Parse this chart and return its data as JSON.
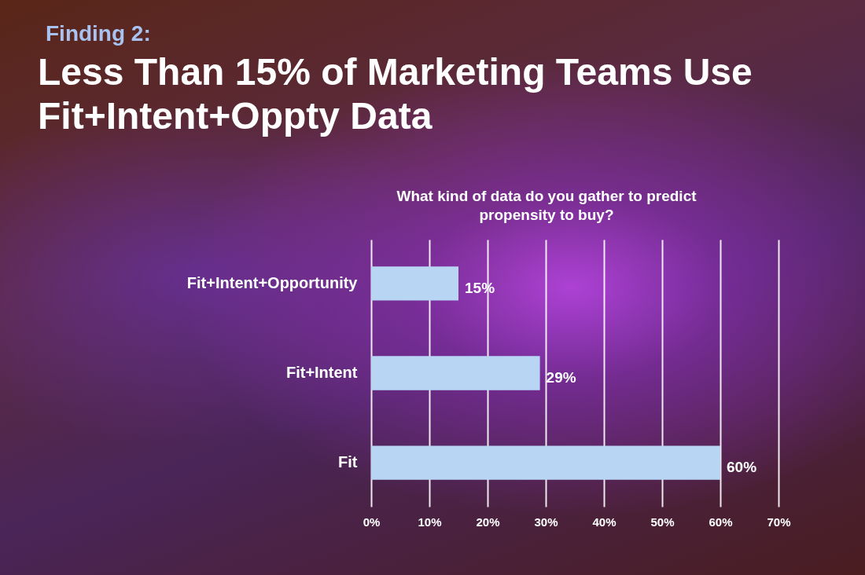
{
  "chart_data": {
    "type": "bar",
    "orientation": "horizontal",
    "annotations": [
      "Finding 2:"
    ],
    "title": "Less Than 15% of Marketing Teams Use Fit+Intent+Oppty Data",
    "subtitle": "What kind of data do you gather to predict propensity to buy?",
    "categories": [
      "Fit+Intent+Opportunity",
      "Fit+Intent",
      "Fit"
    ],
    "values": [
      15,
      29,
      60
    ],
    "value_labels": [
      "15%",
      "29%",
      "60%"
    ],
    "color": "#b8d6f4",
    "xlim": [
      0,
      70
    ],
    "xticks": [
      {
        "value": 0,
        "label": "0%"
      },
      {
        "value": 10,
        "label": "10%"
      },
      {
        "value": 20,
        "label": "20%"
      },
      {
        "value": 30,
        "label": "30%"
      },
      {
        "value": 40,
        "label": "40%"
      },
      {
        "value": 50,
        "label": "50%"
      },
      {
        "value": 60,
        "label": "60%"
      },
      {
        "value": 70,
        "label": "70%"
      }
    ],
    "grid": "x"
  }
}
